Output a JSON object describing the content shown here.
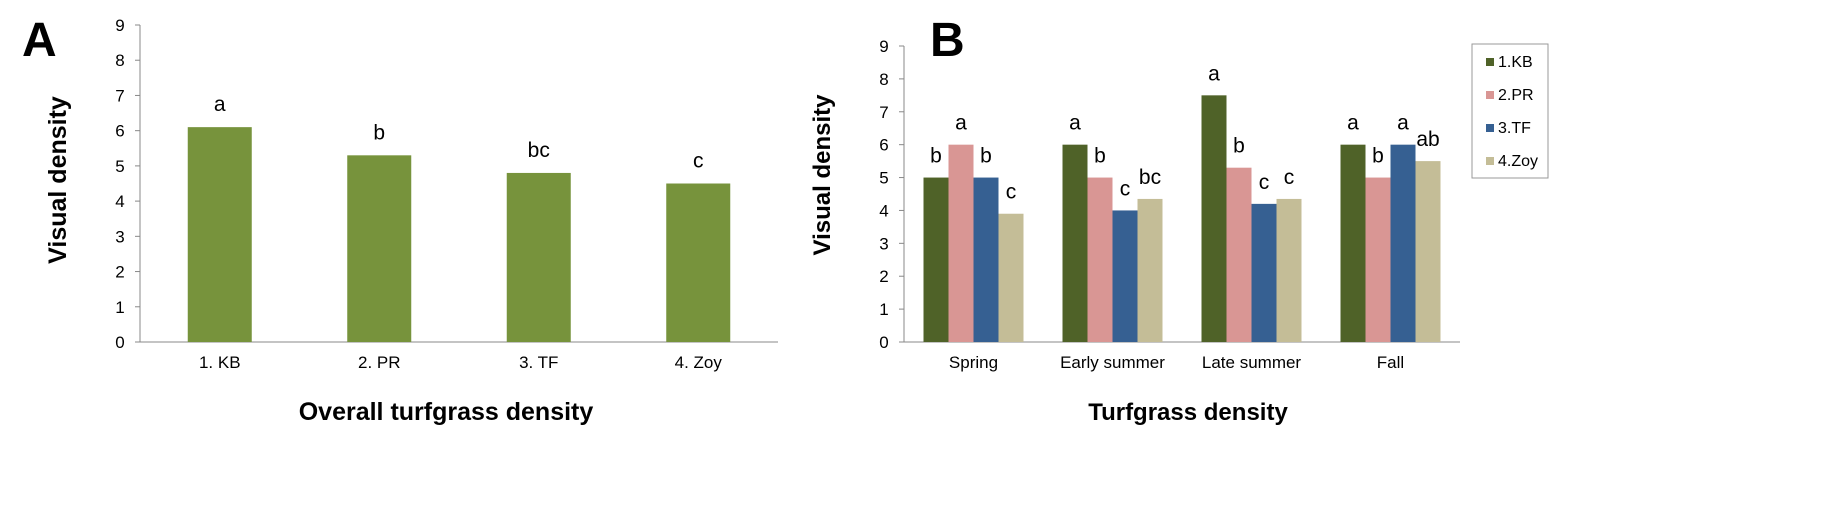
{
  "chart_data": [
    {
      "panel": "A",
      "type": "bar",
      "title": "",
      "xlabel": "Overall turfgrass density",
      "ylabel": "Visual density",
      "ylim": [
        0,
        9
      ],
      "yticks": [
        "0",
        "1",
        "2",
        "3",
        "4",
        "5",
        "6",
        "7",
        "8",
        "9"
      ],
      "categories": [
        "1. KB",
        "2. PR",
        "3. TF",
        "4. Zoy"
      ],
      "values": [
        6.1,
        5.3,
        4.8,
        4.5
      ],
      "labels": [
        "a",
        "b",
        "bc",
        "c"
      ],
      "color": "#77933c",
      "grid": false
    },
    {
      "panel": "B",
      "type": "bar",
      "title": "",
      "xlabel": "Turfgrass density",
      "ylabel": "Visual density",
      "ylim": [
        0,
        9
      ],
      "yticks": [
        "0",
        "1",
        "2",
        "3",
        "4",
        "5",
        "6",
        "7",
        "8",
        "9"
      ],
      "categories": [
        "Spring",
        "Early summer",
        "Late summer",
        "Fall"
      ],
      "legend_position": "top-right",
      "grid": false,
      "series": [
        {
          "name": "1.KB",
          "color": "#4f6228",
          "values": [
            5.0,
            6.0,
            7.5,
            6.0
          ],
          "labels": [
            "b",
            "a",
            "a",
            "a"
          ]
        },
        {
          "name": "2.PR",
          "color": "#d99694",
          "values": [
            6.0,
            5.0,
            5.3,
            5.0
          ],
          "labels": [
            "a",
            "b",
            "b",
            "b"
          ]
        },
        {
          "name": "3.TF",
          "color": "#366092",
          "values": [
            5.0,
            4.0,
            4.2,
            6.0
          ],
          "labels": [
            "b",
            "c",
            "c",
            "a"
          ]
        },
        {
          "name": "4.Zoy",
          "color": "#c4bd97",
          "values": [
            3.9,
            4.35,
            4.35,
            5.5
          ],
          "labels": [
            "c",
            "bc",
            "c",
            "ab"
          ]
        }
      ]
    }
  ]
}
